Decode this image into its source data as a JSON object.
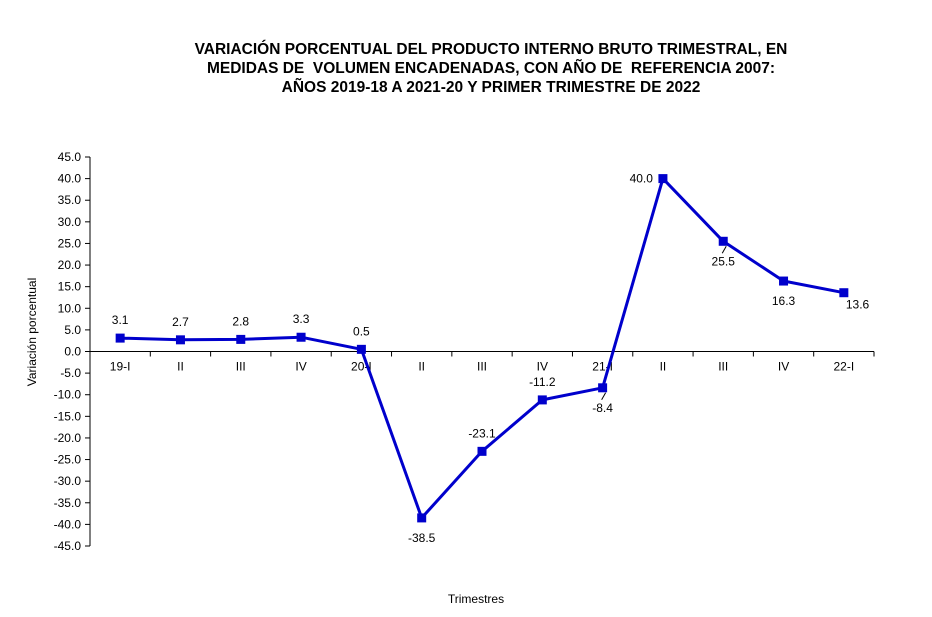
{
  "chart_data": {
    "type": "line",
    "title_lines": [
      "VARIACIÓN PORCENTUAL DEL PRODUCTO INTERNO BRUTO TRIMESTRAL, EN",
      "MEDIDAS DE  VOLUMEN ENCADENADAS, CON AÑO DE  REFERENCIA 2007:",
      "AÑOS 2019-18 A 2021-20 Y PRIMER TRIMESTRE DE 2022"
    ],
    "xlabel": "Trimestres",
    "ylabel": "Variación porcentual",
    "categories": [
      "19-I",
      "II",
      "III",
      "IV",
      "20-I",
      "II",
      "III",
      "IV",
      "21-I",
      "II",
      "III",
      "IV",
      "22-I"
    ],
    "values": [
      3.1,
      2.7,
      2.8,
      3.3,
      0.5,
      -38.5,
      -23.1,
      -11.2,
      -8.4,
      40.0,
      25.5,
      16.3,
      13.6
    ],
    "data_labels": [
      "3.1",
      "2.7",
      "2.8",
      "3.3",
      "0.5",
      "-38.5",
      "-23.1",
      "-11.2",
      "-8.4",
      "40.0",
      "25.5",
      "16.3",
      "13.6"
    ],
    "ylim": [
      -45,
      45
    ],
    "yticks": [
      "45.0",
      "40.0",
      "35.0",
      "30.0",
      "25.0",
      "20.0",
      "15.0",
      "10.0",
      "5.0",
      "0.0",
      "-5.0",
      "-10.0",
      "-15.0",
      "-20.0",
      "-25.0",
      "-30.0",
      "-35.0",
      "-40.0",
      "-45.0"
    ],
    "ytick_values": [
      45,
      40,
      35,
      30,
      25,
      20,
      15,
      10,
      5,
      0,
      -5,
      -10,
      -15,
      -20,
      -25,
      -30,
      -35,
      -40,
      -45
    ],
    "grid": false,
    "legend": false,
    "line_color": "#0000cc",
    "marker": "square"
  }
}
